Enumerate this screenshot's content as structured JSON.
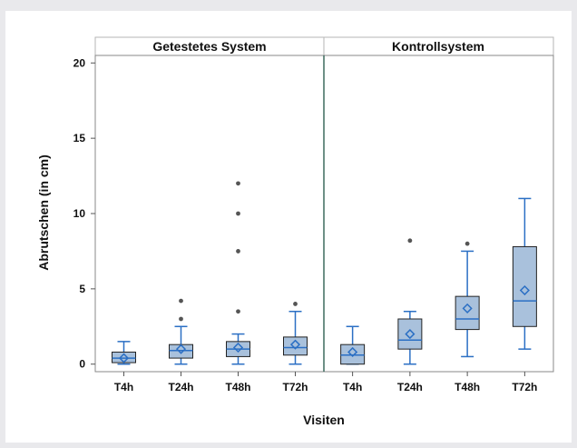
{
  "chart_data": {
    "type": "boxplot",
    "ylabel": "Abrutschen (in cm)",
    "xlabel": "Visiten",
    "ylim": [
      -0.5,
      20.5
    ],
    "yticks": [
      0,
      5,
      10,
      15,
      20
    ],
    "categories": [
      "T4h",
      "T24h",
      "T48h",
      "T72h"
    ],
    "box_color": "#a9c1dc",
    "line_color": "#2b6fc4",
    "panel_titles": [
      "Getestetes System",
      "Kontrollsystem"
    ],
    "panels": [
      {
        "title": "Getestetes System",
        "boxes": [
          {
            "label": "T4h",
            "whisker_low": 0,
            "q1": 0.1,
            "median": 0.4,
            "q3": 0.8,
            "whisker_high": 1.5,
            "mean": 0.4,
            "outliers": []
          },
          {
            "label": "T24h",
            "whisker_low": 0,
            "q1": 0.4,
            "median": 0.9,
            "q3": 1.3,
            "whisker_high": 2.5,
            "mean": 1.0,
            "outliers": [
              3.0,
              4.2
            ]
          },
          {
            "label": "T48h",
            "whisker_low": 0,
            "q1": 0.5,
            "median": 1.0,
            "q3": 1.5,
            "whisker_high": 2.0,
            "mean": 1.1,
            "outliers": [
              3.5,
              7.5,
              10.0,
              12.0
            ]
          },
          {
            "label": "T72h",
            "whisker_low": 0,
            "q1": 0.6,
            "median": 1.1,
            "q3": 1.8,
            "whisker_high": 3.5,
            "mean": 1.3,
            "outliers": [
              4.0
            ]
          }
        ]
      },
      {
        "title": "Kontrollsystem",
        "boxes": [
          {
            "label": "T4h",
            "whisker_low": 0,
            "q1": 0,
            "median": 0.6,
            "q3": 1.3,
            "whisker_high": 2.5,
            "mean": 0.8,
            "outliers": []
          },
          {
            "label": "T24h",
            "whisker_low": 0,
            "q1": 1.0,
            "median": 1.6,
            "q3": 3.0,
            "whisker_high": 3.5,
            "mean": 2.0,
            "outliers": [
              8.2
            ]
          },
          {
            "label": "T48h",
            "whisker_low": 0.5,
            "q1": 2.3,
            "median": 3.0,
            "q3": 4.5,
            "whisker_high": 7.5,
            "mean": 3.7,
            "outliers": [
              8.0
            ]
          },
          {
            "label": "T72h",
            "whisker_low": 1.0,
            "q1": 2.5,
            "median": 4.2,
            "q3": 7.8,
            "whisker_high": 11.0,
            "mean": 4.9,
            "outliers": []
          }
        ]
      }
    ]
  }
}
